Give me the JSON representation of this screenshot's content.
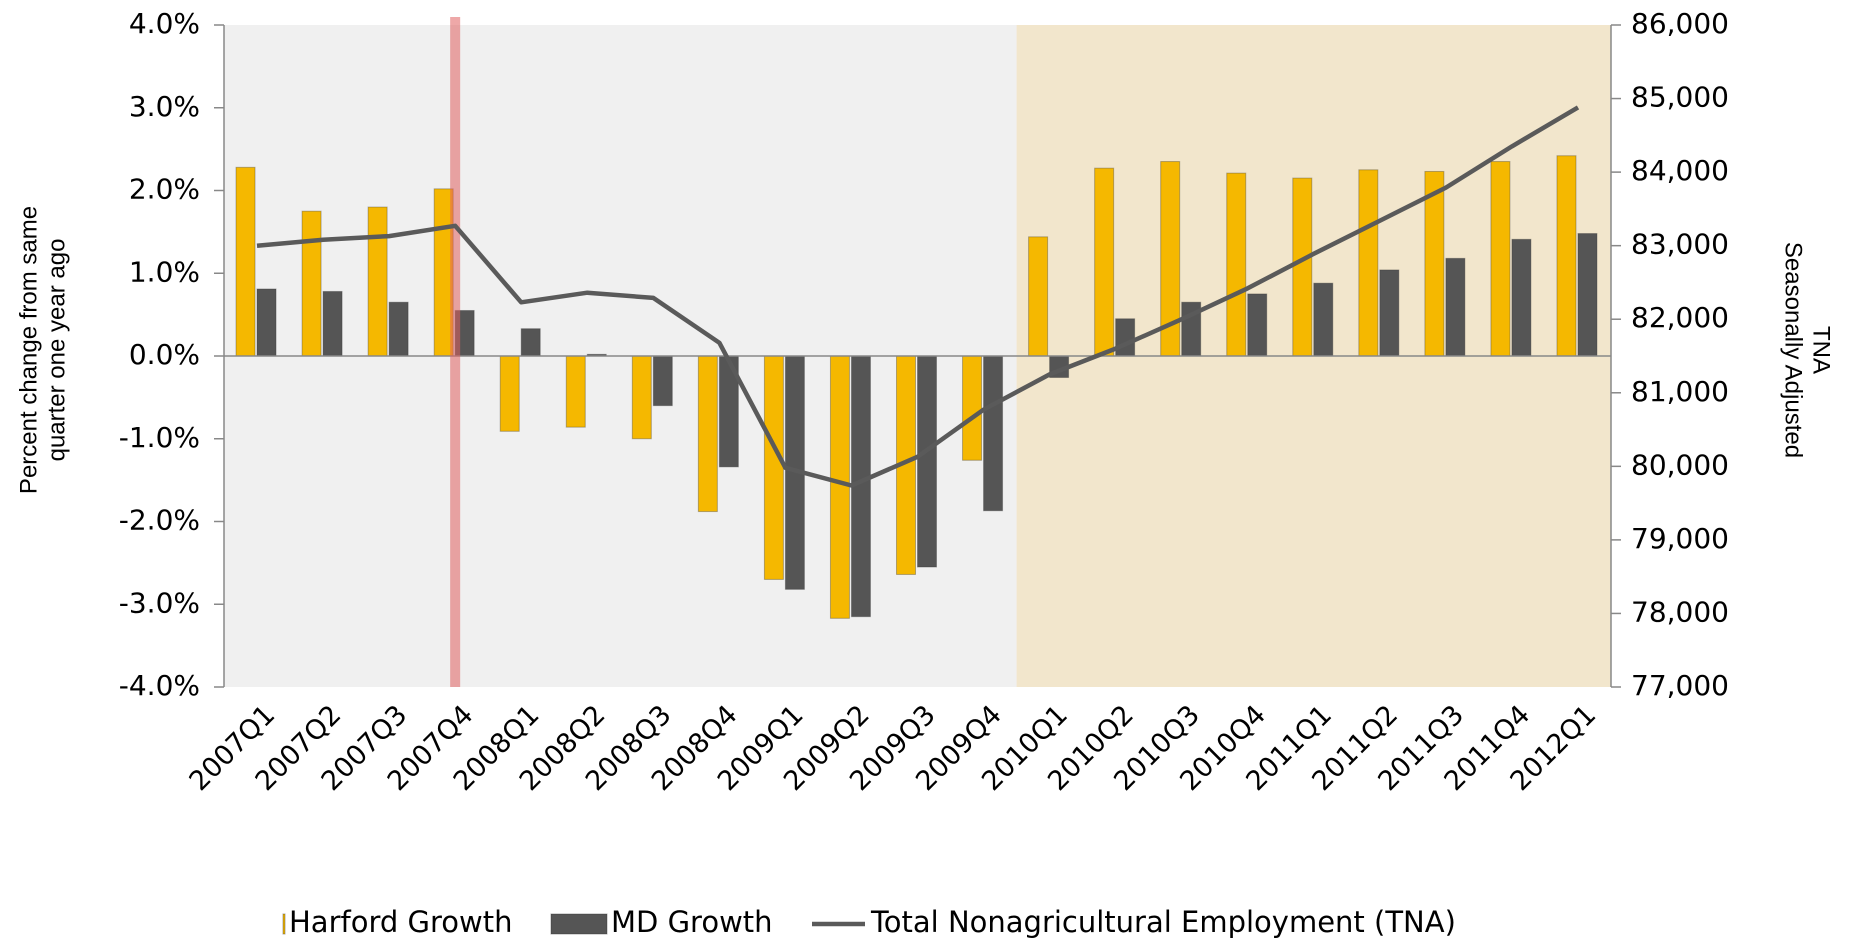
{
  "chart_data": {
    "type": "bar_line",
    "ylabel": [
      "Percent change from same",
      "quarter one year ago"
    ],
    "y2label": [
      "TNA",
      "Seasonally Adjusted"
    ],
    "categories": [
      "2007Q1",
      "2007Q2",
      "2007Q3",
      "2007Q4",
      "2008Q1",
      "2008Q2",
      "2008Q3",
      "2008Q4",
      "2009Q1",
      "2009Q2",
      "2009Q3",
      "2009Q4",
      "2010Q1",
      "2010Q2",
      "2010Q3",
      "2010Q4",
      "2011Q1",
      "2011Q2",
      "2011Q3",
      "2011Q4",
      "2012Q1"
    ],
    "series": [
      {
        "name": "Harford Growth",
        "type": "bar",
        "color": "#f5b800",
        "values": [
          2.28,
          1.75,
          1.8,
          2.02,
          -0.91,
          -0.86,
          -1.0,
          -1.88,
          -2.7,
          -3.17,
          -2.64,
          -1.26,
          1.44,
          2.27,
          2.35,
          2.21,
          2.15,
          2.25,
          2.23,
          2.35,
          2.42
        ]
      },
      {
        "name": "MD Growth",
        "type": "bar",
        "color": "#555555",
        "values": [
          0.81,
          0.78,
          0.65,
          0.55,
          0.33,
          0.02,
          -0.6,
          -1.34,
          -2.82,
          -3.15,
          -2.55,
          -1.87,
          -0.26,
          0.45,
          0.65,
          0.75,
          0.88,
          1.04,
          1.18,
          1.41,
          1.48
        ]
      },
      {
        "name": "Total Nonagricultural Employment (TNA)",
        "type": "line",
        "axis": "y2",
        "color": "#5a5a5a",
        "values": [
          83000,
          83080,
          83130,
          83270,
          82230,
          82360,
          82290,
          81680,
          79980,
          79740,
          80130,
          80770,
          81250,
          81600,
          82000,
          82420,
          82890,
          83340,
          83790,
          84350,
          84880
        ]
      }
    ],
    "ylim": [
      -4,
      4
    ],
    "yticks": [
      {
        "value": -4,
        "label": "-4.0%"
      },
      {
        "value": -3,
        "label": "-3.0%"
      },
      {
        "value": -2,
        "label": "-2.0%"
      },
      {
        "value": -1,
        "label": "-1.0%"
      },
      {
        "value": 0,
        "label": "0.0%"
      },
      {
        "value": 1,
        "label": "1.0%"
      },
      {
        "value": 2,
        "label": "2.0%"
      },
      {
        "value": 3,
        "label": "3.0%"
      },
      {
        "value": 4,
        "label": "4.0%"
      }
    ],
    "y2lim": [
      77000,
      86000
    ],
    "y2ticks": [
      {
        "value": 77000,
        "label": "77,000"
      },
      {
        "value": 78000,
        "label": "78,000"
      },
      {
        "value": 79000,
        "label": "79,000"
      },
      {
        "value": 80000,
        "label": "80,000"
      },
      {
        "value": 81000,
        "label": "81,000"
      },
      {
        "value": 82000,
        "label": "82,000"
      },
      {
        "value": 83000,
        "label": "83,000"
      },
      {
        "value": 84000,
        "label": "84,000"
      },
      {
        "value": 85000,
        "label": "85,000"
      },
      {
        "value": 86000,
        "label": "86,000"
      }
    ],
    "legend": "bottom"
  }
}
